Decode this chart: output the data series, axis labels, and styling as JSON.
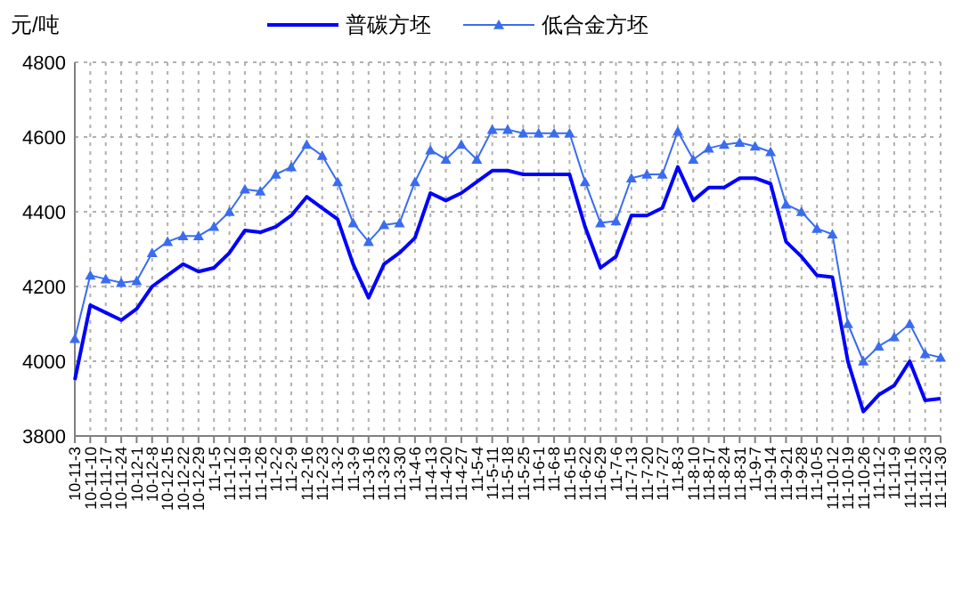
{
  "chart_data": {
    "type": "line",
    "ylabel": "元/吨",
    "categories": [
      "10-11-3",
      "10-11-10",
      "10-11-17",
      "10-11-24",
      "10-12-1",
      "10-12-8",
      "10-12-15",
      "10-12-22",
      "10-12-29",
      "11-1-5",
      "11-1-12",
      "11-1-19",
      "11-1-26",
      "11-2-2",
      "11-2-9",
      "11-2-16",
      "11-2-23",
      "11-3-2",
      "11-3-9",
      "11-3-16",
      "11-3-23",
      "11-3-30",
      "11-4-6",
      "11-4-13",
      "11-4-20",
      "11-4-27",
      "11-5-4",
      "11-5-11",
      "11-5-18",
      "11-5-25",
      "11-6-1",
      "11-6-8",
      "11-6-15",
      "11-6-22",
      "11-6-29",
      "11-7-6",
      "11-7-13",
      "11-7-20",
      "11-7-27",
      "11-8-3",
      "11-8-10",
      "11-8-17",
      "11-8-24",
      "11-8-31",
      "11-9-7",
      "11-9-14",
      "11-9-21",
      "11-9-28",
      "11-10-5",
      "11-10-12",
      "11-10-19",
      "11-10-26",
      "11-11-2",
      "11-11-9",
      "11-11-16",
      "11-11-23",
      "11-11-30"
    ],
    "series": [
      {
        "name": "普碳方坯",
        "color": "#0000ff",
        "marker": "none",
        "values": [
          3950,
          4150,
          4130,
          4110,
          4140,
          4200,
          4230,
          4260,
          4240,
          4250,
          4290,
          4350,
          4345,
          4360,
          4390,
          4440,
          4410,
          4380,
          4260,
          4170,
          4260,
          4290,
          4330,
          4450,
          4430,
          4450,
          4480,
          4510,
          4510,
          4500,
          4500,
          4500,
          4500,
          4360,
          4250,
          4280,
          4390,
          4390,
          4410,
          4520,
          4430,
          4465,
          4465,
          4490,
          4490,
          4475,
          4320,
          4280,
          4230,
          4225,
          4000,
          3865,
          3910,
          3935,
          4000,
          3895,
          3900
        ]
      },
      {
        "name": "低合金方坯",
        "color": "#3a6cf0",
        "marker": "triangle",
        "values": [
          4060,
          4230,
          4220,
          4210,
          4215,
          4290,
          4320,
          4335,
          4335,
          4360,
          4400,
          4460,
          4455,
          4500,
          4520,
          4580,
          4550,
          4480,
          4370,
          4320,
          4365,
          4370,
          4480,
          4565,
          4540,
          4580,
          4540,
          4620,
          4620,
          4610,
          4610,
          4610,
          4610,
          4480,
          4370,
          4375,
          4490,
          4500,
          4500,
          4615,
          4540,
          4570,
          4580,
          4585,
          4575,
          4560,
          4420,
          4400,
          4355,
          4340,
          4100,
          4000,
          4040,
          4065,
          4100,
          4020,
          4010
        ]
      }
    ],
    "ylim": [
      3800,
      4800
    ],
    "yticks": [
      3800,
      4000,
      4200,
      4400,
      4600,
      4800
    ],
    "grid": true,
    "legend": "top",
    "line_style": "solid"
  }
}
